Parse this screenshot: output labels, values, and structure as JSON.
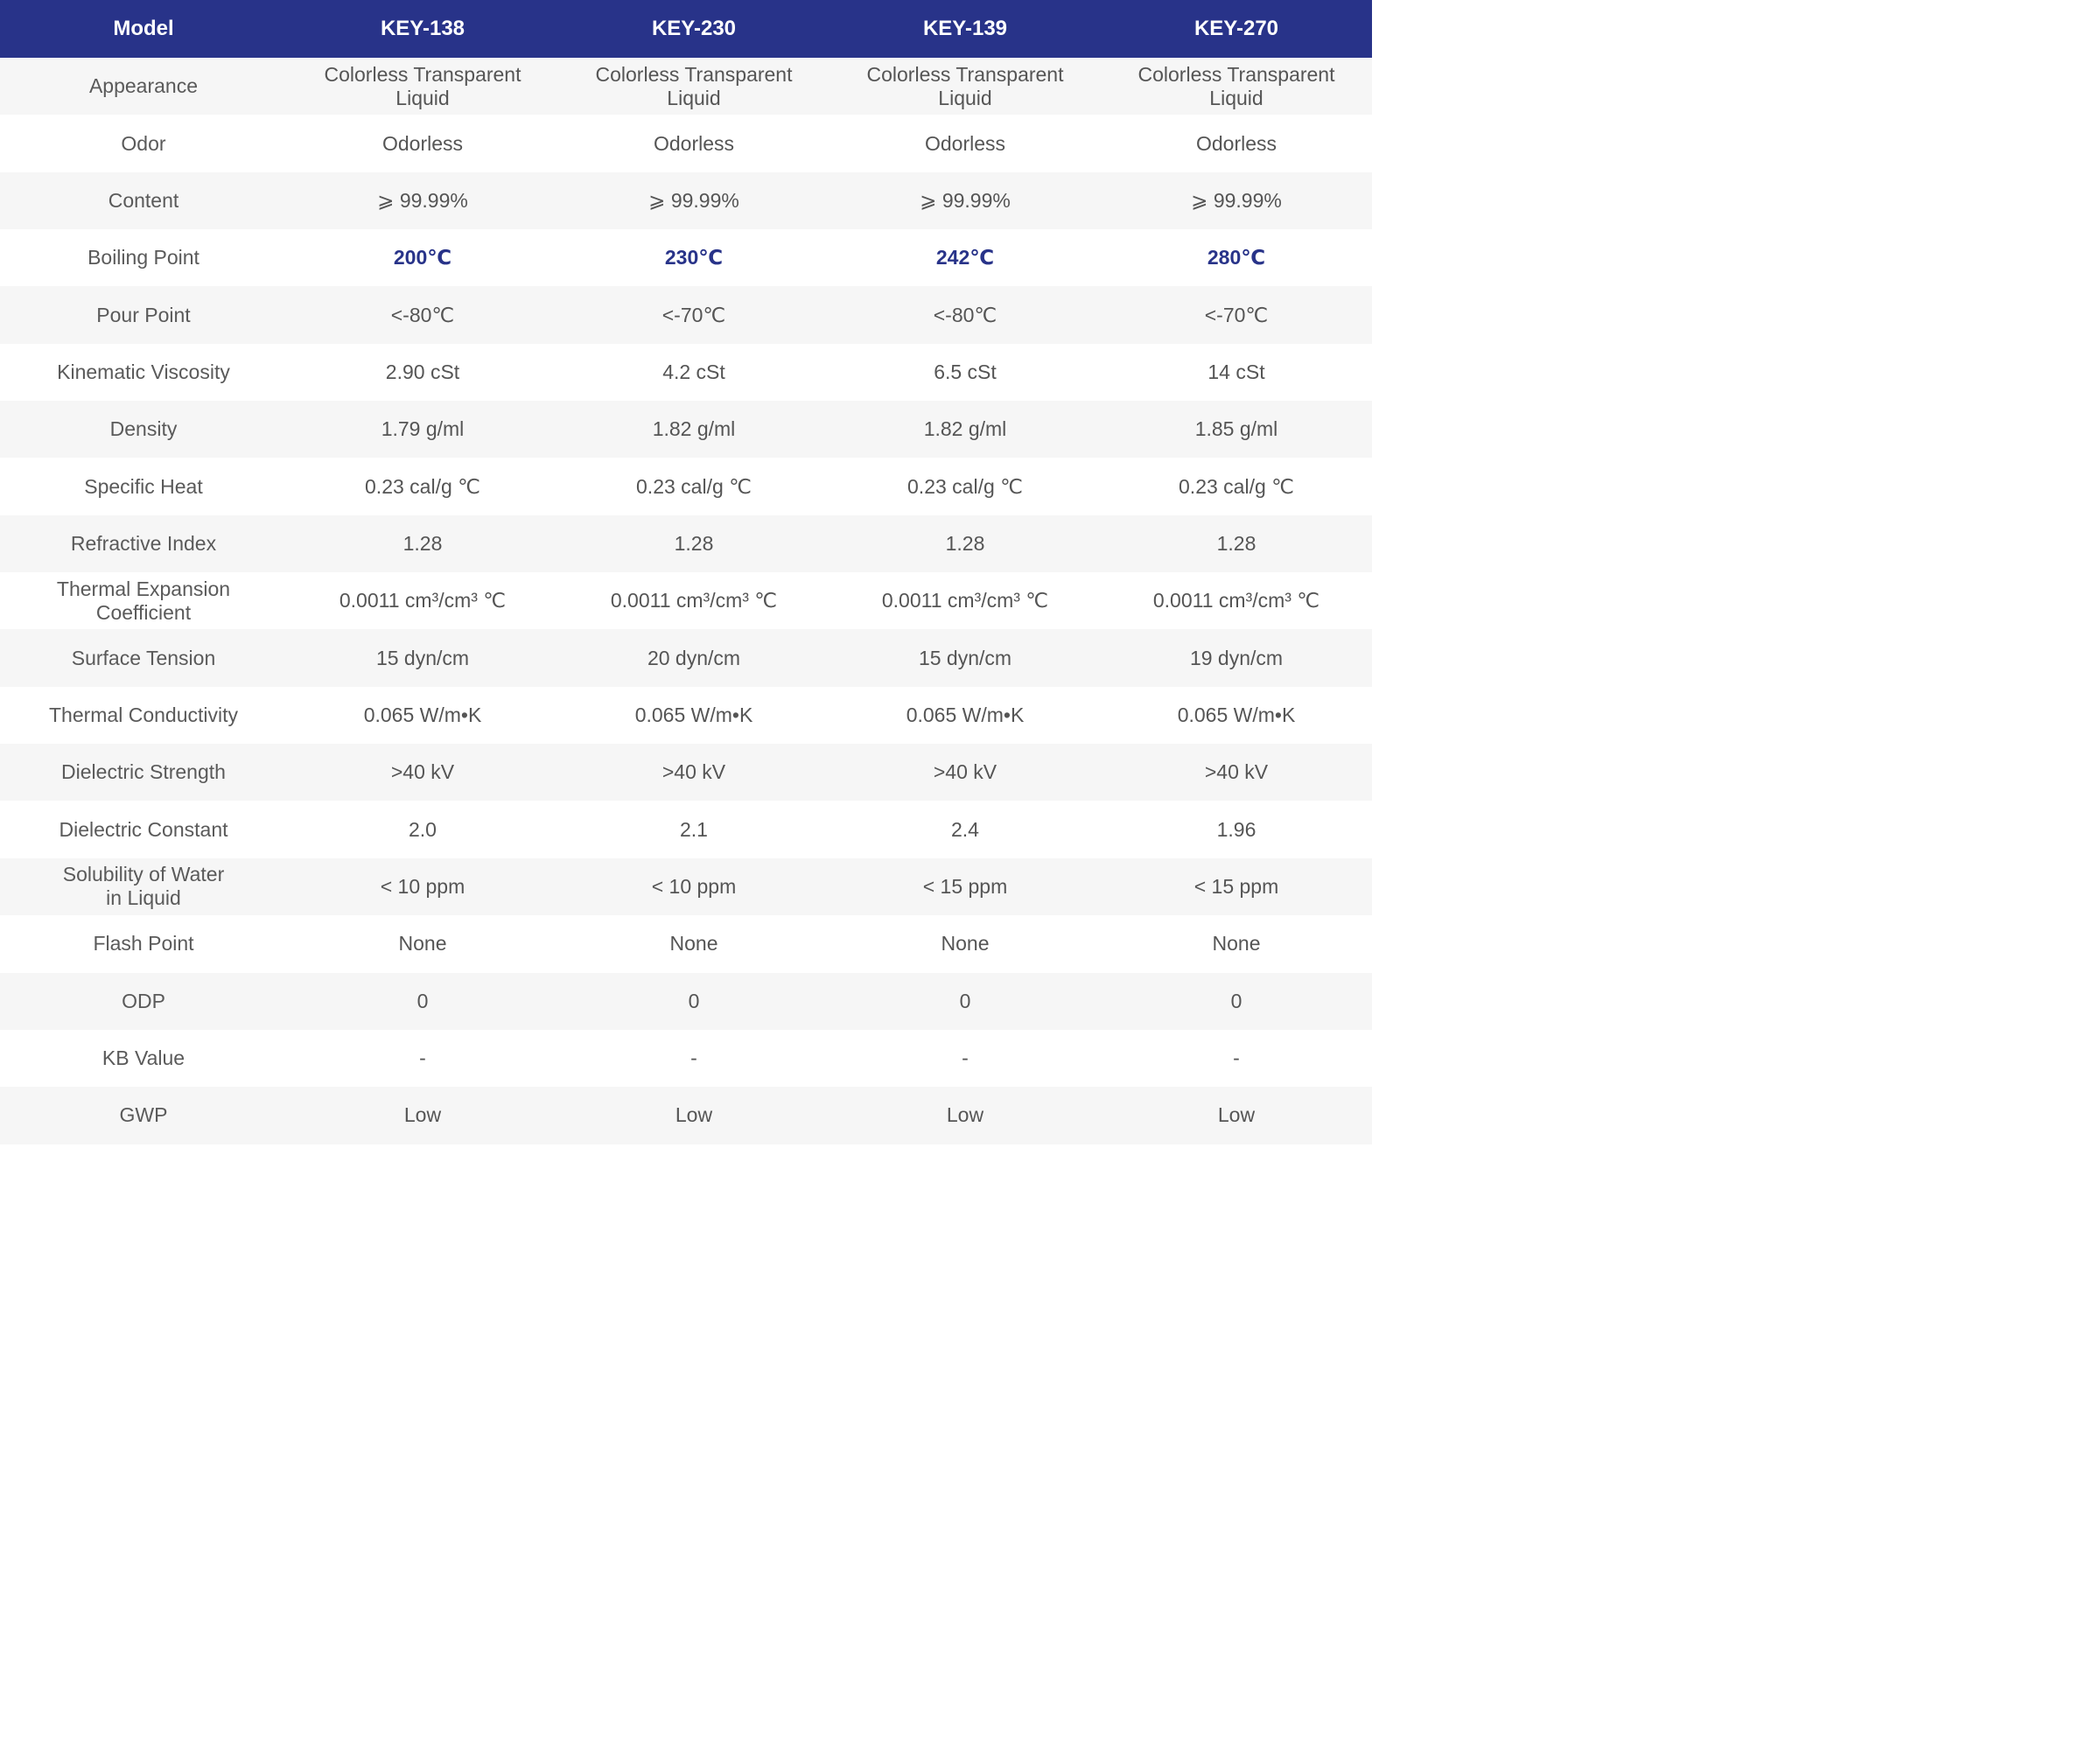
{
  "table": {
    "header": [
      "Model",
      "KEY-138",
      "KEY-230",
      "KEY-139",
      "KEY-270"
    ],
    "rows": [
      {
        "label": "Appearance",
        "values": [
          "Colorless Transparent\nLiquid",
          "Colorless Transparent\nLiquid",
          "Colorless Transparent\nLiquid",
          "Colorless Transparent\nLiquid"
        ]
      },
      {
        "label": "Odor",
        "values": [
          "Odorless",
          "Odorless",
          "Odorless",
          "Odorless"
        ]
      },
      {
        "label": "Content",
        "values": [
          "⩾ 99.99%",
          "⩾ 99.99%",
          "⩾ 99.99%",
          "⩾ 99.99%"
        ]
      },
      {
        "label": "Boiling Point",
        "values": [
          "200℃",
          "230℃",
          "242℃",
          "280℃"
        ]
      },
      {
        "label": "Pour Point",
        "values": [
          "<-80℃",
          "<-70℃",
          "<-80℃",
          "<-70℃"
        ]
      },
      {
        "label": "Kinematic Viscosity",
        "values": [
          "2.90 cSt",
          "4.2 cSt",
          "6.5 cSt",
          "14 cSt"
        ]
      },
      {
        "label": "Density",
        "values": [
          "1.79 g/ml",
          "1.82 g/ml",
          "1.82 g/ml",
          "1.85 g/ml"
        ]
      },
      {
        "label": "Specific Heat",
        "values": [
          "0.23 cal/g ℃",
          "0.23 cal/g ℃",
          "0.23 cal/g ℃",
          "0.23 cal/g ℃"
        ]
      },
      {
        "label": "Refractive Index",
        "values": [
          "1.28",
          "1.28",
          "1.28",
          "1.28"
        ]
      },
      {
        "label": "Thermal Expansion\nCoefficient",
        "values": [
          "0.0011 cm³/cm³ ℃",
          "0.0011 cm³/cm³ ℃",
          "0.0011 cm³/cm³ ℃",
          "0.0011 cm³/cm³ ℃"
        ]
      },
      {
        "label": "Surface Tension",
        "values": [
          "15 dyn/cm",
          "20 dyn/cm",
          "15 dyn/cm",
          "19 dyn/cm"
        ]
      },
      {
        "label": "Thermal Conductivity",
        "values": [
          "0.065 W/m•K",
          "0.065 W/m•K",
          "0.065 W/m•K",
          "0.065 W/m•K"
        ]
      },
      {
        "label": "Dielectric Strength",
        "values": [
          ">40 kV",
          ">40 kV",
          ">40 kV",
          ">40 kV"
        ]
      },
      {
        "label": "Dielectric Constant",
        "values": [
          "2.0",
          "2.1",
          "2.4",
          "1.96"
        ]
      },
      {
        "label": "Solubility of Water\nin Liquid",
        "values": [
          "< 10 ppm",
          "< 10 ppm",
          "< 15 ppm",
          "< 15 ppm"
        ]
      },
      {
        "label": "Flash Point",
        "values": [
          "None",
          "None",
          "None",
          "None"
        ]
      },
      {
        "label": "ODP",
        "values": [
          "0",
          "0",
          "0",
          "0"
        ]
      },
      {
        "label": "KB Value",
        "values": [
          "-",
          "-",
          "-",
          "-"
        ]
      },
      {
        "label": "GWP",
        "values": [
          "Low",
          "Low",
          "Low",
          "Low"
        ]
      }
    ]
  },
  "colors": {
    "header_bg": "#283389",
    "header_text": "#ffffff",
    "highlight_text": "#283389",
    "row_alt_bg": "#f6f6f6",
    "body_text": "#555555"
  }
}
